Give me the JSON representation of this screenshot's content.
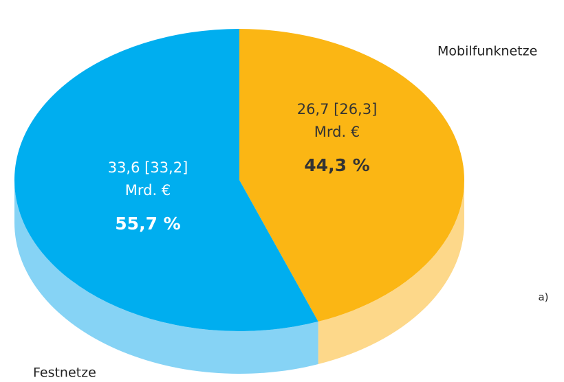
{
  "chart_data": {
    "type": "pie",
    "categories": [
      "Mobilfunknetze",
      "Festnetze"
    ],
    "values": [
      44.3,
      55.7
    ],
    "value_labels": [
      "44,3 %",
      "55,7 %"
    ],
    "amount_labels": [
      "26,7 [26,3]",
      "33,6 [33,2]"
    ],
    "unit_label": "Mrd. €",
    "colors": [
      "#fbb614",
      "#00aeef"
    ],
    "side_colors": [
      "#fdd88a",
      "#86d3f5"
    ],
    "note": "a)"
  }
}
